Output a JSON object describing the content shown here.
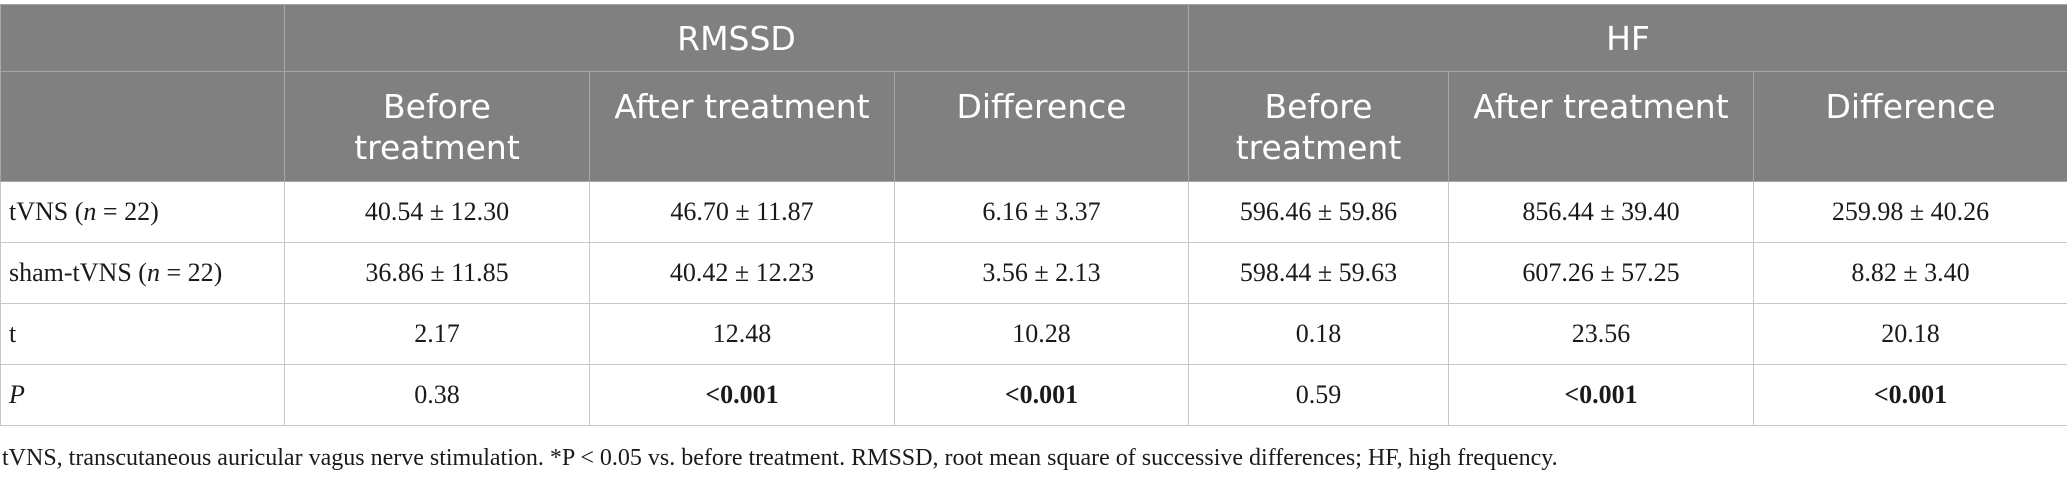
{
  "header": {
    "groups": [
      "RMSSD",
      "HF"
    ],
    "subcols": [
      "Before treatment",
      "After treatment",
      "Difference",
      "Before treatment",
      "After treatment",
      "Difference"
    ],
    "subcols_lines": [
      [
        "Before",
        "treatment"
      ],
      [
        "After treatment"
      ],
      [
        "Difference"
      ],
      [
        "Before",
        "treatment"
      ],
      [
        "After treatment"
      ],
      [
        "Difference"
      ]
    ]
  },
  "rows": [
    {
      "label_pre": "tVNS (",
      "label_italic": "n",
      "label_post": " = 22)",
      "cells": [
        "40.54 ± 12.30",
        "46.70 ± 11.87",
        "6.16 ± 3.37",
        "596.46 ± 59.86",
        "856.44 ± 39.40",
        "259.98 ± 40.26"
      ]
    },
    {
      "label_pre": "sham-tVNS (",
      "label_italic": "n",
      "label_post": " = 22)",
      "cells": [
        "36.86 ± 11.85",
        "40.42 ± 12.23",
        "3.56 ± 2.13",
        "598.44 ± 59.63",
        "607.26 ± 57.25",
        "8.82 ± 3.40"
      ]
    },
    {
      "label_pre": "t",
      "label_italic": "",
      "label_post": "",
      "cells": [
        "2.17",
        "12.48",
        "10.28",
        "0.18",
        "23.56",
        "20.18"
      ]
    },
    {
      "label_pre": "",
      "label_italic": "P",
      "label_post": "",
      "cells": [
        "0.38",
        "<0.001",
        "<0.001",
        "0.59",
        "<0.001",
        "<0.001"
      ]
    }
  ],
  "footnote": "tVNS, transcutaneous auricular vagus nerve stimulation. *P < 0.05 vs. before treatment. RMSSD, root mean square of successive differences; HF, high frequency."
}
